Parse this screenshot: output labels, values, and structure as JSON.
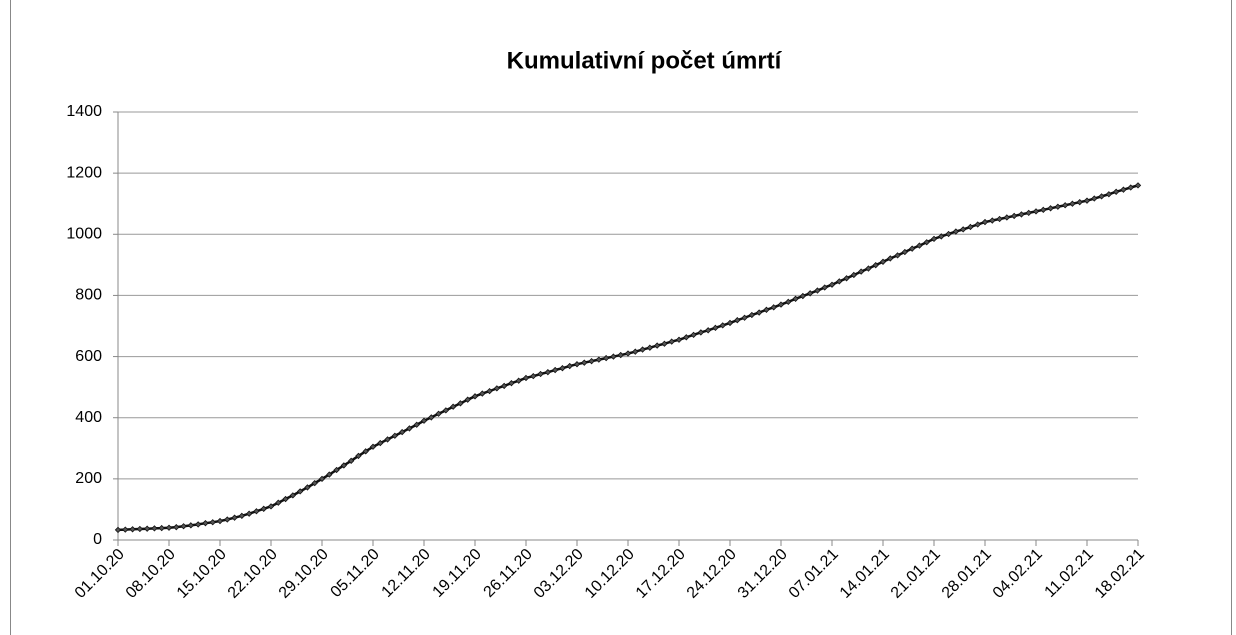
{
  "chart_data": {
    "type": "line",
    "title": "Kumulativní počet úmrtí",
    "categories": [
      "01.10.20",
      null,
      null,
      null,
      null,
      null,
      null,
      "08.10.20",
      null,
      null,
      null,
      null,
      null,
      null,
      "15.10.20",
      null,
      null,
      null,
      null,
      null,
      null,
      "22.10.20",
      null,
      null,
      null,
      null,
      null,
      null,
      "29.10.20",
      null,
      null,
      null,
      null,
      null,
      null,
      "05.11.20",
      null,
      null,
      null,
      null,
      null,
      null,
      "12.11.20",
      null,
      null,
      null,
      null,
      null,
      null,
      "19.11.20",
      null,
      null,
      null,
      null,
      null,
      null,
      "26.11.20",
      null,
      null,
      null,
      null,
      null,
      null,
      "03.12.20",
      null,
      null,
      null,
      null,
      null,
      null,
      "10.12.20",
      null,
      null,
      null,
      null,
      null,
      null,
      "17.12.20",
      null,
      null,
      null,
      null,
      null,
      null,
      "24.12.20",
      null,
      null,
      null,
      null,
      null,
      null,
      "31.12.20",
      null,
      null,
      null,
      null,
      null,
      null,
      "07.01.21",
      null,
      null,
      null,
      null,
      null,
      null,
      "14.01.21",
      null,
      null,
      null,
      null,
      null,
      null,
      "21.01.21",
      null,
      null,
      null,
      null,
      null,
      null,
      "28.01.21",
      null,
      null,
      null,
      null,
      null,
      null,
      "04.02.21",
      null,
      null,
      null,
      null,
      null,
      null,
      "11.02.21",
      null,
      null,
      null,
      null,
      null,
      null,
      "18.02.21"
    ],
    "values": [
      33,
      34,
      35,
      36,
      37,
      38,
      39,
      40,
      42,
      45,
      48,
      51,
      55,
      58,
      62,
      67,
      73,
      79,
      86,
      94,
      102,
      110,
      122,
      134,
      146,
      159,
      172,
      186,
      200,
      214,
      229,
      244,
      259,
      275,
      290,
      305,
      317,
      329,
      341,
      353,
      365,
      377,
      390,
      401,
      413,
      424,
      436,
      447,
      459,
      470,
      479,
      487,
      496,
      504,
      513,
      521,
      530,
      536,
      543,
      549,
      556,
      562,
      569,
      575,
      580,
      585,
      590,
      595,
      600,
      605,
      610,
      616,
      623,
      629,
      636,
      642,
      649,
      655,
      663,
      671,
      679,
      686,
      694,
      702,
      710,
      719,
      727,
      736,
      744,
      753,
      761,
      770,
      779,
      789,
      798,
      807,
      816,
      826,
      835,
      846,
      856,
      867,
      878,
      888,
      899,
      910,
      921,
      931,
      942,
      953,
      963,
      974,
      985,
      993,
      1001,
      1009,
      1016,
      1024,
      1032,
      1040,
      1045,
      1050,
      1055,
      1060,
      1065,
      1070,
      1075,
      1080,
      1085,
      1090,
      1095,
      1100,
      1105,
      1110,
      1117,
      1124,
      1131,
      1139,
      1146,
      1153,
      1160
    ],
    "color": "#111111",
    "ylim": [
      0,
      1400
    ],
    "yticks": [
      0,
      200,
      400,
      600,
      800,
      1000,
      1200,
      1400
    ],
    "grid": true
  }
}
